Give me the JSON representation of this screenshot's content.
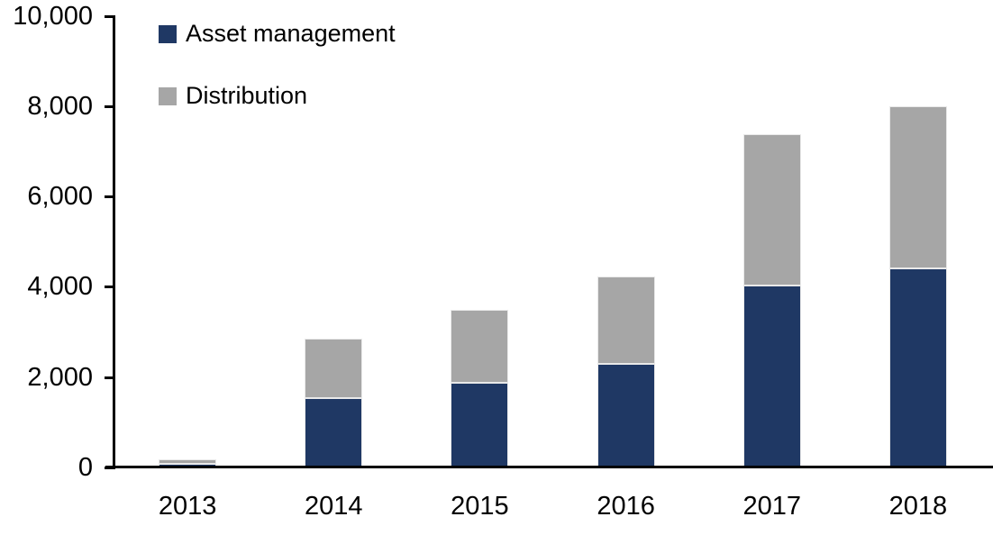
{
  "chart_data": {
    "type": "bar",
    "stacked": true,
    "title": "",
    "xlabel": "",
    "ylabel": "",
    "categories": [
      "2013",
      "2014",
      "2015",
      "2016",
      "2017",
      "2018"
    ],
    "series": [
      {
        "name": "Asset management",
        "color": "#1F3864",
        "values": [
          100,
          1550,
          1890,
          2300,
          4030,
          4420
        ]
      },
      {
        "name": "Distribution",
        "color": "#A6A6A6",
        "values": [
          100,
          1310,
          1600,
          1940,
          3350,
          3580
        ]
      }
    ],
    "stack_totals": [
      200,
      2860,
      3490,
      4240,
      7380,
      8000
    ],
    "ylim": [
      0,
      10000
    ],
    "ytick_step": 2000,
    "ytick_labels": [
      "0",
      "2,000",
      "4,000",
      "6,000",
      "8,000",
      "10,000"
    ],
    "grid": false,
    "legend_position": "top-left",
    "axis_color": "#000000",
    "bar_border_color": "#E9E9E9"
  }
}
